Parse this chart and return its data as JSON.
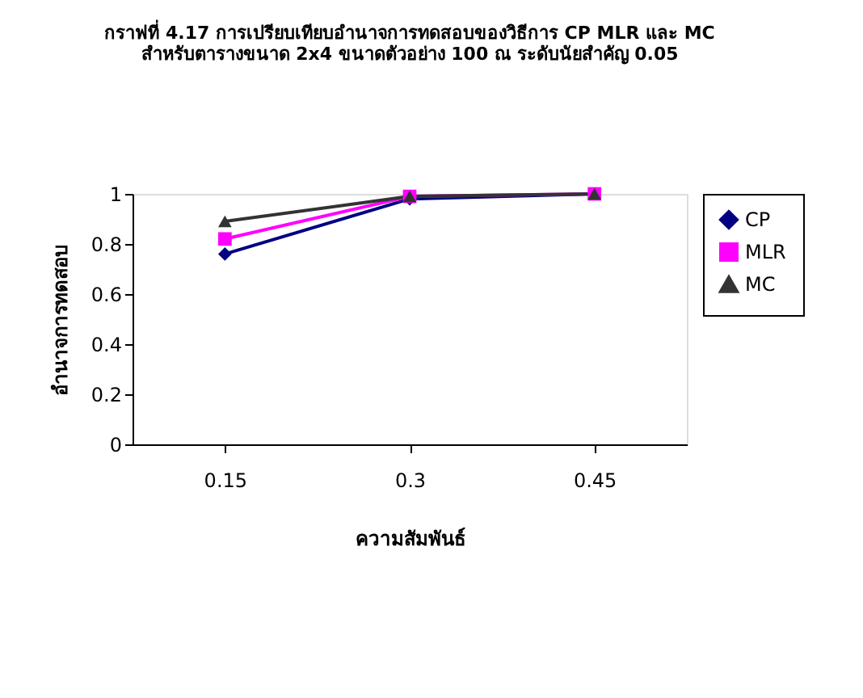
{
  "chart_data": {
    "type": "line",
    "title": [
      "กราฟที่ 4.17  การเปรียบเทียบอำนาจการทดสอบของวิธีการ CP MLR และ MC",
      "สำหรับตารางขนาด 2x4  ขนาดตัวอย่าง  100  ณ ระดับนัยสำคัญ 0.05"
    ],
    "xlabel": "ความสัมพันธ์",
    "ylabel": "อำนาจการทดสอบ",
    "categories": [
      "0.15",
      "0.3",
      "0.45"
    ],
    "series": [
      {
        "name": "CP",
        "color": "#000080",
        "marker": "diamond",
        "values": [
          0.76,
          0.98,
          1.0
        ]
      },
      {
        "name": "MLR",
        "color": "#ff00ff",
        "marker": "square",
        "values": [
          0.82,
          0.99,
          1.0
        ]
      },
      {
        "name": "MC",
        "color": "#333333",
        "marker": "triangle",
        "values": [
          0.89,
          0.99,
          1.0
        ]
      }
    ],
    "ylim": [
      0,
      1
    ],
    "yticks": [
      0,
      0.2,
      0.4,
      0.6,
      0.8,
      1
    ],
    "grid": false,
    "legend": "right",
    "line_style": "solid"
  }
}
